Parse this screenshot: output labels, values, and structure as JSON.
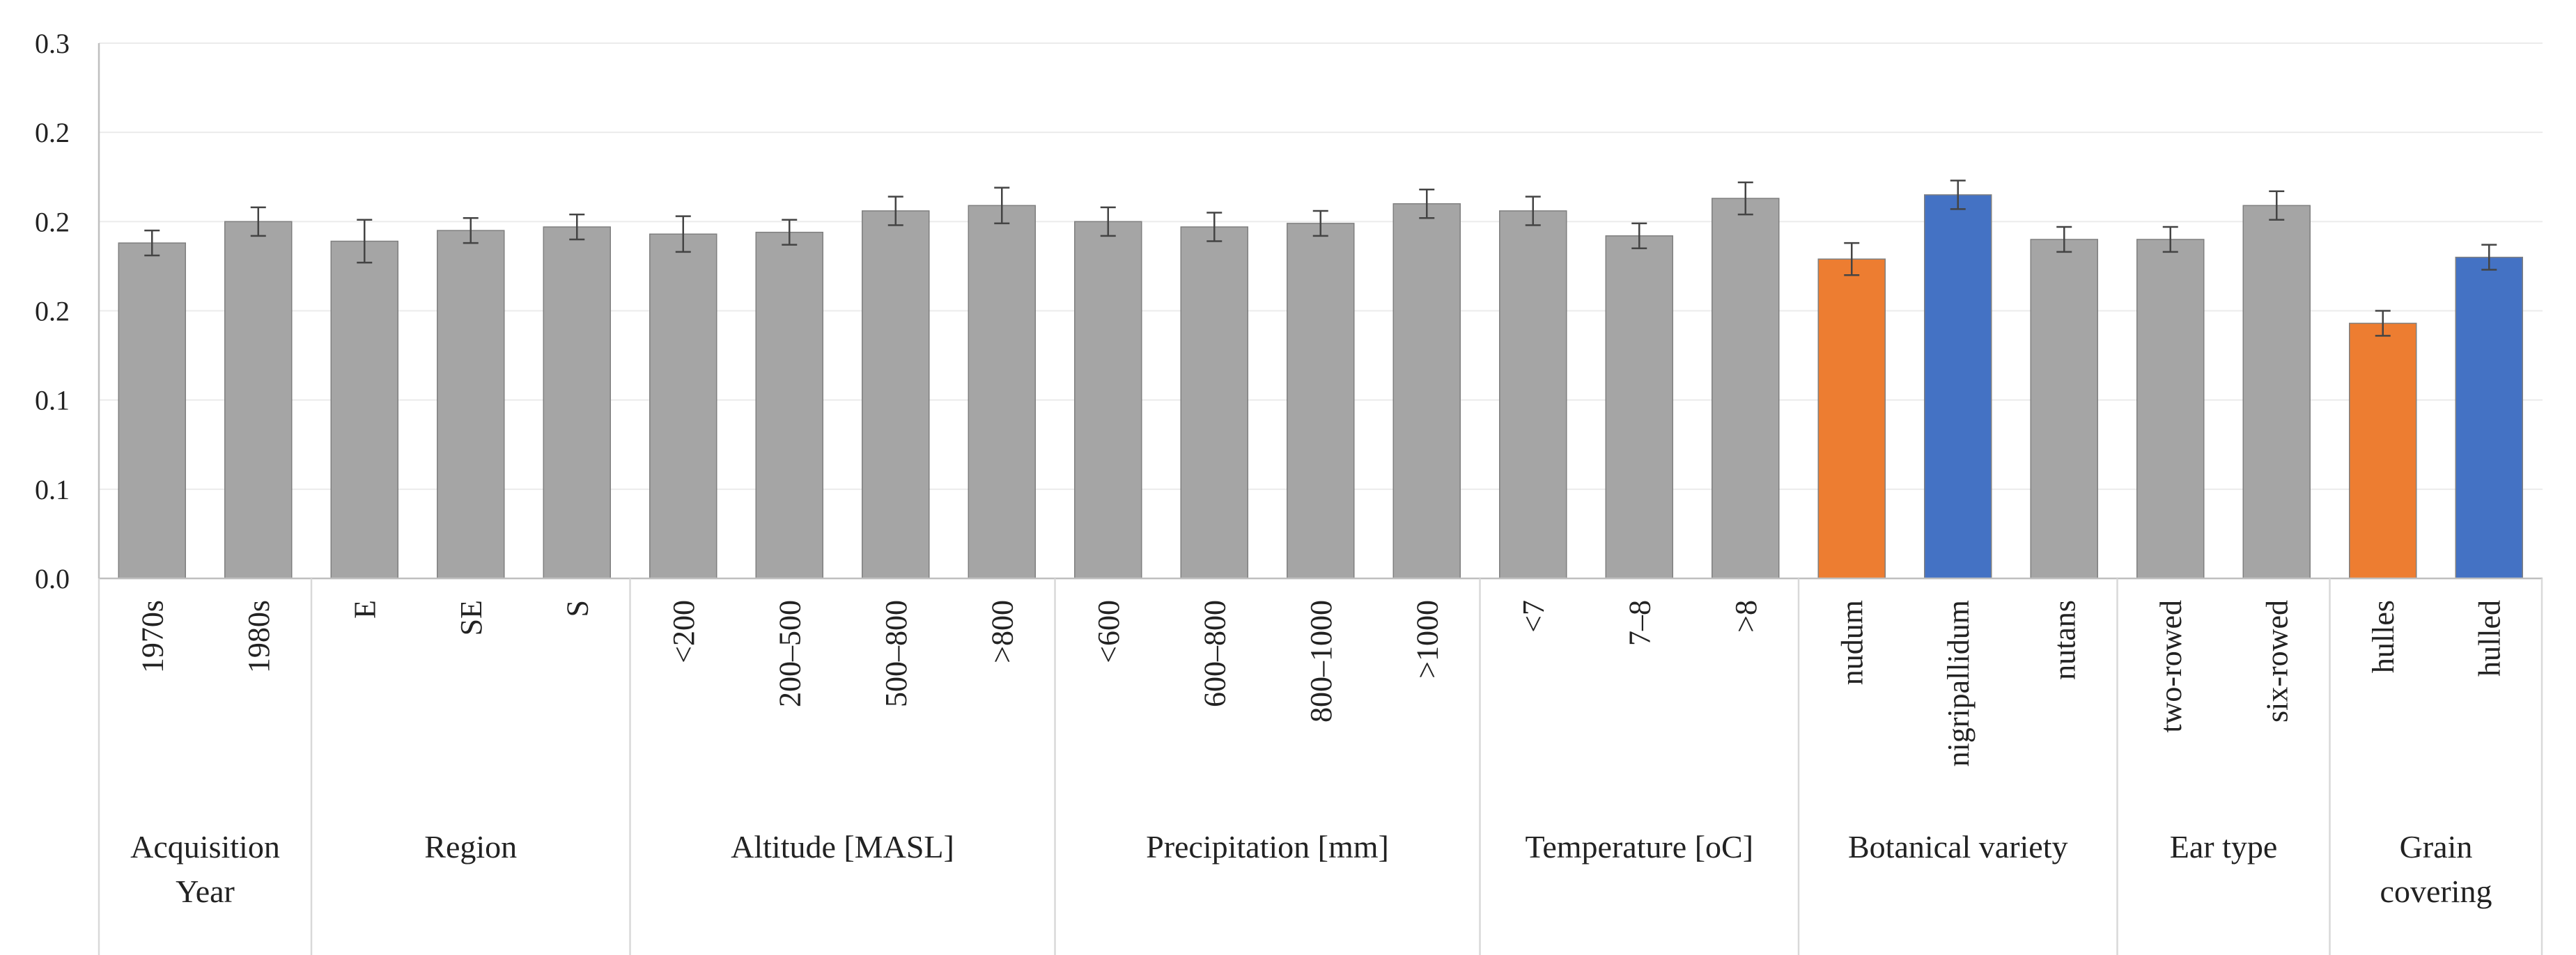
{
  "chart_data": {
    "type": "bar",
    "title": "",
    "xlabel": "",
    "ylabel": "",
    "ylim": [
      0.0,
      0.3
    ],
    "y_tick_labels": [
      "0.0",
      "0.1",
      "0.1",
      "0.2",
      "0.2",
      "0.2",
      "0.3"
    ],
    "grid": true,
    "colors": {
      "default": "#a5a5a5",
      "orange": "#ed7d31",
      "blue": "#4472c4",
      "error_bar": "#444444",
      "axis": "#bfbfbf"
    },
    "groups": [
      {
        "label": "Acquisition Year",
        "label_lines": [
          "Acquisition",
          "Year"
        ],
        "bars": [
          {
            "category": "1970s",
            "value": 0.188,
            "error": 0.007,
            "color": "default"
          },
          {
            "category": "1980s",
            "value": 0.2,
            "error": 0.008,
            "color": "default"
          }
        ]
      },
      {
        "label": "Region",
        "label_lines": [
          "Region"
        ],
        "bars": [
          {
            "category": "E",
            "value": 0.189,
            "error": 0.012,
            "color": "default"
          },
          {
            "category": "SE",
            "value": 0.195,
            "error": 0.007,
            "color": "default"
          },
          {
            "category": "S",
            "value": 0.197,
            "error": 0.007,
            "color": "default"
          }
        ]
      },
      {
        "label": "Altitude [MASL]",
        "label_lines": [
          "Altitude [MASL]"
        ],
        "bars": [
          {
            "category": "<200",
            "value": 0.193,
            "error": 0.01,
            "color": "default"
          },
          {
            "category": "200–500",
            "value": 0.194,
            "error": 0.007,
            "color": "default"
          },
          {
            "category": "500–800",
            "value": 0.206,
            "error": 0.008,
            "color": "default"
          },
          {
            "category": ">800",
            "value": 0.209,
            "error": 0.01,
            "color": "default"
          }
        ]
      },
      {
        "label": "Precipitation [mm]",
        "label_lines": [
          "Precipitation [mm]"
        ],
        "bars": [
          {
            "category": "<600",
            "value": 0.2,
            "error": 0.008,
            "color": "default"
          },
          {
            "category": "600–800",
            "value": 0.197,
            "error": 0.008,
            "color": "default"
          },
          {
            "category": "800–1000",
            "value": 0.199,
            "error": 0.007,
            "color": "default"
          },
          {
            "category": ">1000",
            "value": 0.21,
            "error": 0.008,
            "color": "default"
          }
        ]
      },
      {
        "label": "Temperature [oC]",
        "label_lines": [
          "Temperature [oC]"
        ],
        "bars": [
          {
            "category": "<7",
            "value": 0.206,
            "error": 0.008,
            "color": "default"
          },
          {
            "category": "7–8",
            "value": 0.192,
            "error": 0.007,
            "color": "default"
          },
          {
            "category": ">8",
            "value": 0.213,
            "error": 0.009,
            "color": "default"
          }
        ]
      },
      {
        "label": "Botanical variety",
        "label_lines": [
          "Botanical variety"
        ],
        "bars": [
          {
            "category": "nudum",
            "value": 0.179,
            "error": 0.009,
            "color": "orange"
          },
          {
            "category": "nigripallidum",
            "value": 0.215,
            "error": 0.008,
            "color": "blue"
          },
          {
            "category": "nutans",
            "value": 0.19,
            "error": 0.007,
            "color": "default"
          }
        ]
      },
      {
        "label": "Ear type",
        "label_lines": [
          "Ear type"
        ],
        "bars": [
          {
            "category": "two-rowed",
            "value": 0.19,
            "error": 0.007,
            "color": "default"
          },
          {
            "category": "six-rowed",
            "value": 0.209,
            "error": 0.008,
            "color": "default"
          }
        ]
      },
      {
        "label": "Grain covering",
        "label_lines": [
          "Grain",
          "covering"
        ],
        "bars": [
          {
            "category": "hulles",
            "value": 0.143,
            "error": 0.007,
            "color": "orange"
          },
          {
            "category": "hulled",
            "value": 0.18,
            "error": 0.007,
            "color": "blue"
          }
        ]
      }
    ]
  }
}
